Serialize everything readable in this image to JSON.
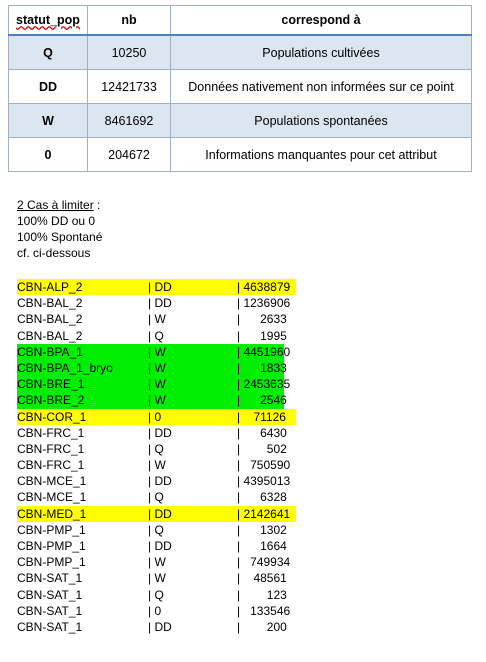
{
  "table": {
    "headers": [
      "statut_pop",
      "nb",
      "correspond à"
    ],
    "rows": [
      {
        "code": "Q",
        "nb": "10250",
        "desc": "Populations cultivées",
        "shaded": true
      },
      {
        "code": "DD",
        "nb": "12421733",
        "desc": "Données nativement non informées sur ce point",
        "shaded": false
      },
      {
        "code": "W",
        "nb": "8461692",
        "desc": "Populations spontanées",
        "shaded": true
      },
      {
        "code": "0",
        "nb": "204672",
        "desc": "Informations manquantes pour cet attribut",
        "shaded": false
      }
    ]
  },
  "notes": {
    "title": "2 Cas à limiter",
    "title_suffix": " :",
    "lines": [
      "100% DD ou 0",
      "100% Spontané",
      "cf. ci-dessous"
    ]
  },
  "colors": {
    "yellow": "#ffff00",
    "green": "#00ee00",
    "shade": "#dce6f1",
    "border": "#4f81bd"
  },
  "list": [
    {
      "name": "CBN-ALP_2",
      "statut": "| DD",
      "nb": "| 4638879",
      "hl": "yellow"
    },
    {
      "name": "CBN-BAL_2",
      "statut": "| DD",
      "nb": "| 1236906",
      "hl": ""
    },
    {
      "name": "CBN-BAL_2",
      "statut": "| W",
      "nb": "|      2633",
      "hl": ""
    },
    {
      "name": "CBN-BAL_2",
      "statut": "| Q",
      "nb": "|      1995",
      "hl": ""
    },
    {
      "name": "CBN-BPA_1",
      "statut": "| W",
      "nb": "| 4451960",
      "hl": "green"
    },
    {
      "name": "CBN-BPA_1_bryo",
      "statut": "| W",
      "nb": "|      1833",
      "hl": "green"
    },
    {
      "name": "CBN-BRE_1",
      "statut": "| W",
      "nb": "| 2453635",
      "hl": "green"
    },
    {
      "name": "CBN-BRE_2",
      "statut": "| W",
      "nb": "|      2546",
      "hl": "green"
    },
    {
      "name": "CBN-COR_1",
      "statut": "| 0",
      "nb": "|    71126",
      "hl": "yellow"
    },
    {
      "name": "CBN-FRC_1",
      "statut": "| DD",
      "nb": "|      6430",
      "hl": ""
    },
    {
      "name": "CBN-FRC_1",
      "statut": "| Q",
      "nb": "|        502",
      "hl": ""
    },
    {
      "name": "CBN-FRC_1",
      "statut": "| W",
      "nb": "|   750590",
      "hl": ""
    },
    {
      "name": "CBN-MCE_1",
      "statut": "| DD",
      "nb": "| 4395013",
      "hl": ""
    },
    {
      "name": "CBN-MCE_1",
      "statut": "| Q",
      "nb": "|      6328",
      "hl": ""
    },
    {
      "name": "CBN-MED_1",
      "statut": "| DD",
      "nb": "| 2142641",
      "hl": "yellow"
    },
    {
      "name": "CBN-PMP_1",
      "statut": "| Q",
      "nb": "|      1302",
      "hl": ""
    },
    {
      "name": "CBN-PMP_1",
      "statut": "| DD",
      "nb": "|      1664",
      "hl": ""
    },
    {
      "name": "CBN-PMP_1",
      "statut": "| W",
      "nb": "|   749934",
      "hl": ""
    },
    {
      "name": "CBN-SAT_1",
      "statut": "| W",
      "nb": "|    48561",
      "hl": ""
    },
    {
      "name": "CBN-SAT_1",
      "statut": "| Q",
      "nb": "|        123",
      "hl": ""
    },
    {
      "name": "CBN-SAT_1",
      "statut": "| 0",
      "nb": "|   133546",
      "hl": ""
    },
    {
      "name": "CBN-SAT_1",
      "statut": "| DD",
      "nb": "|        200",
      "hl": ""
    }
  ]
}
